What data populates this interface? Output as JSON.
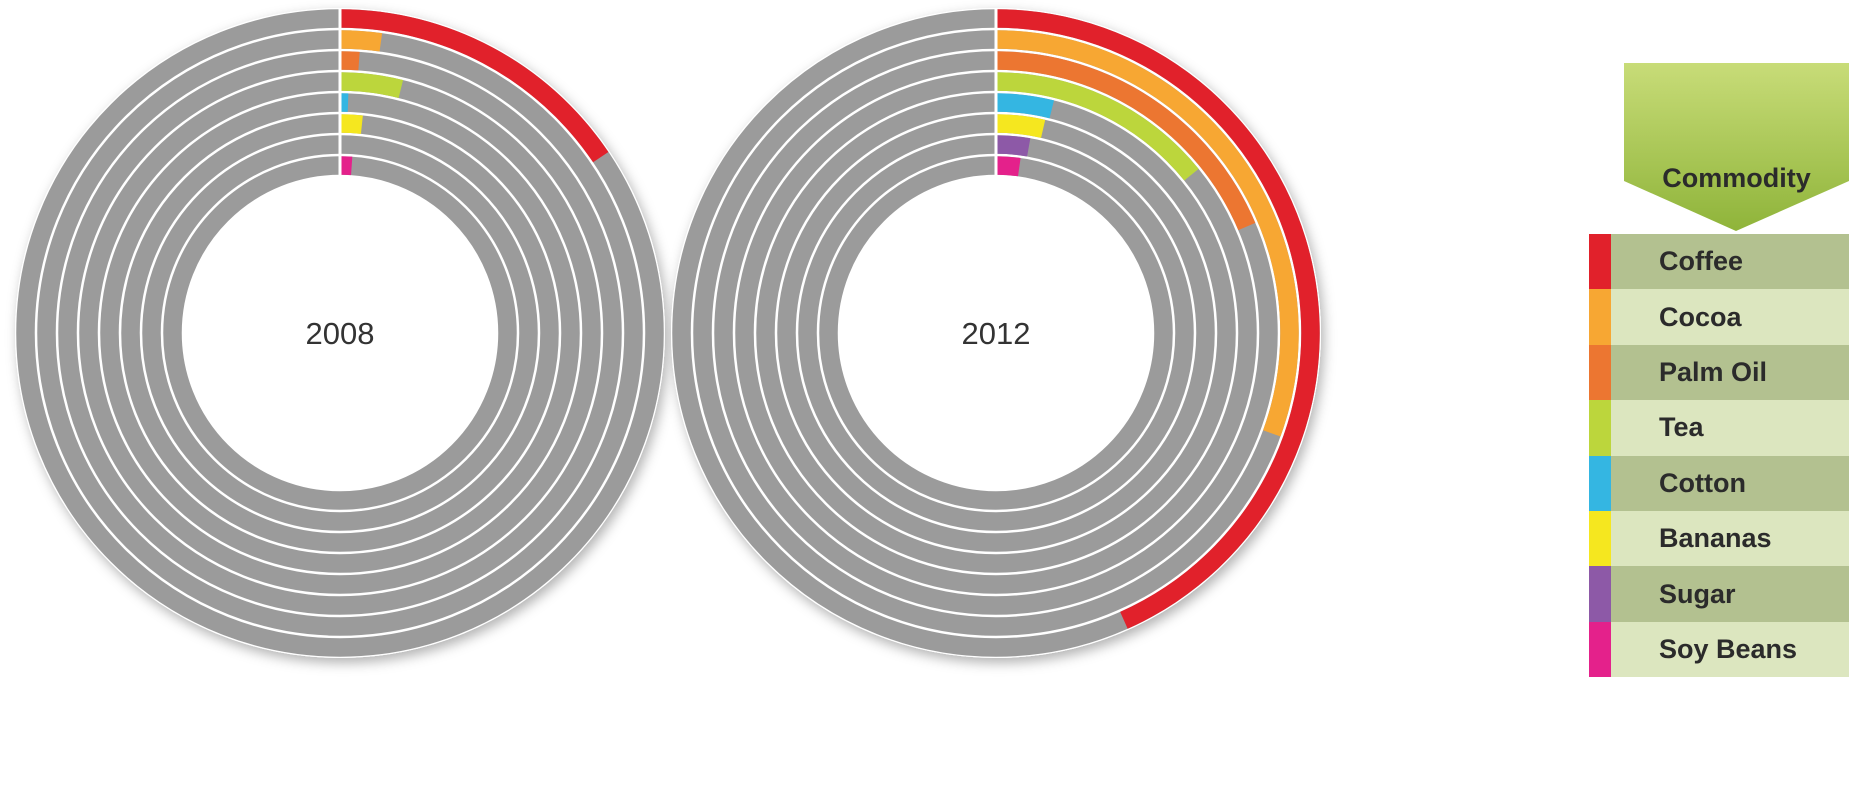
{
  "legend": {
    "title": "Commodity",
    "header_color": "#9bbf3f",
    "row_colors": [
      "#b3c190",
      "#dce6bf"
    ]
  },
  "track_color": "#9b9b9b",
  "chart_data": [
    {
      "type": "radial-bar",
      "center_label": "2008",
      "value_unit": "degrees of circle",
      "series": [
        {
          "name": "Coffee",
          "color": "#e1212b",
          "value": 56
        },
        {
          "name": "Cocoa",
          "color": "#f7a733",
          "value": 8
        },
        {
          "name": "Palm Oil",
          "color": "#ec7631",
          "value": 4
        },
        {
          "name": "Tea",
          "color": "#bcd63c",
          "value": 14
        },
        {
          "name": "Cotton",
          "color": "#34b6e2",
          "value": 2
        },
        {
          "name": "Bananas",
          "color": "#f5e71f",
          "value": 6
        },
        {
          "name": "Sugar",
          "color": "#8d59a7",
          "value": 0
        },
        {
          "name": "Soy Beans",
          "color": "#e4218b",
          "value": 4
        }
      ]
    },
    {
      "type": "radial-bar",
      "center_label": "2012",
      "value_unit": "degrees of circle",
      "series": [
        {
          "name": "Coffee",
          "color": "#e1212b",
          "value": 156
        },
        {
          "name": "Cocoa",
          "color": "#f7a733",
          "value": 110
        },
        {
          "name": "Palm Oil",
          "color": "#ec7631",
          "value": 67
        },
        {
          "name": "Tea",
          "color": "#bcd63c",
          "value": 51
        },
        {
          "name": "Cotton",
          "color": "#34b6e2",
          "value": 14
        },
        {
          "name": "Bananas",
          "color": "#f5e71f",
          "value": 13
        },
        {
          "name": "Sugar",
          "color": "#8d59a7",
          "value": 10
        },
        {
          "name": "Soy Beans",
          "color": "#e4218b",
          "value": 8
        }
      ]
    }
  ]
}
